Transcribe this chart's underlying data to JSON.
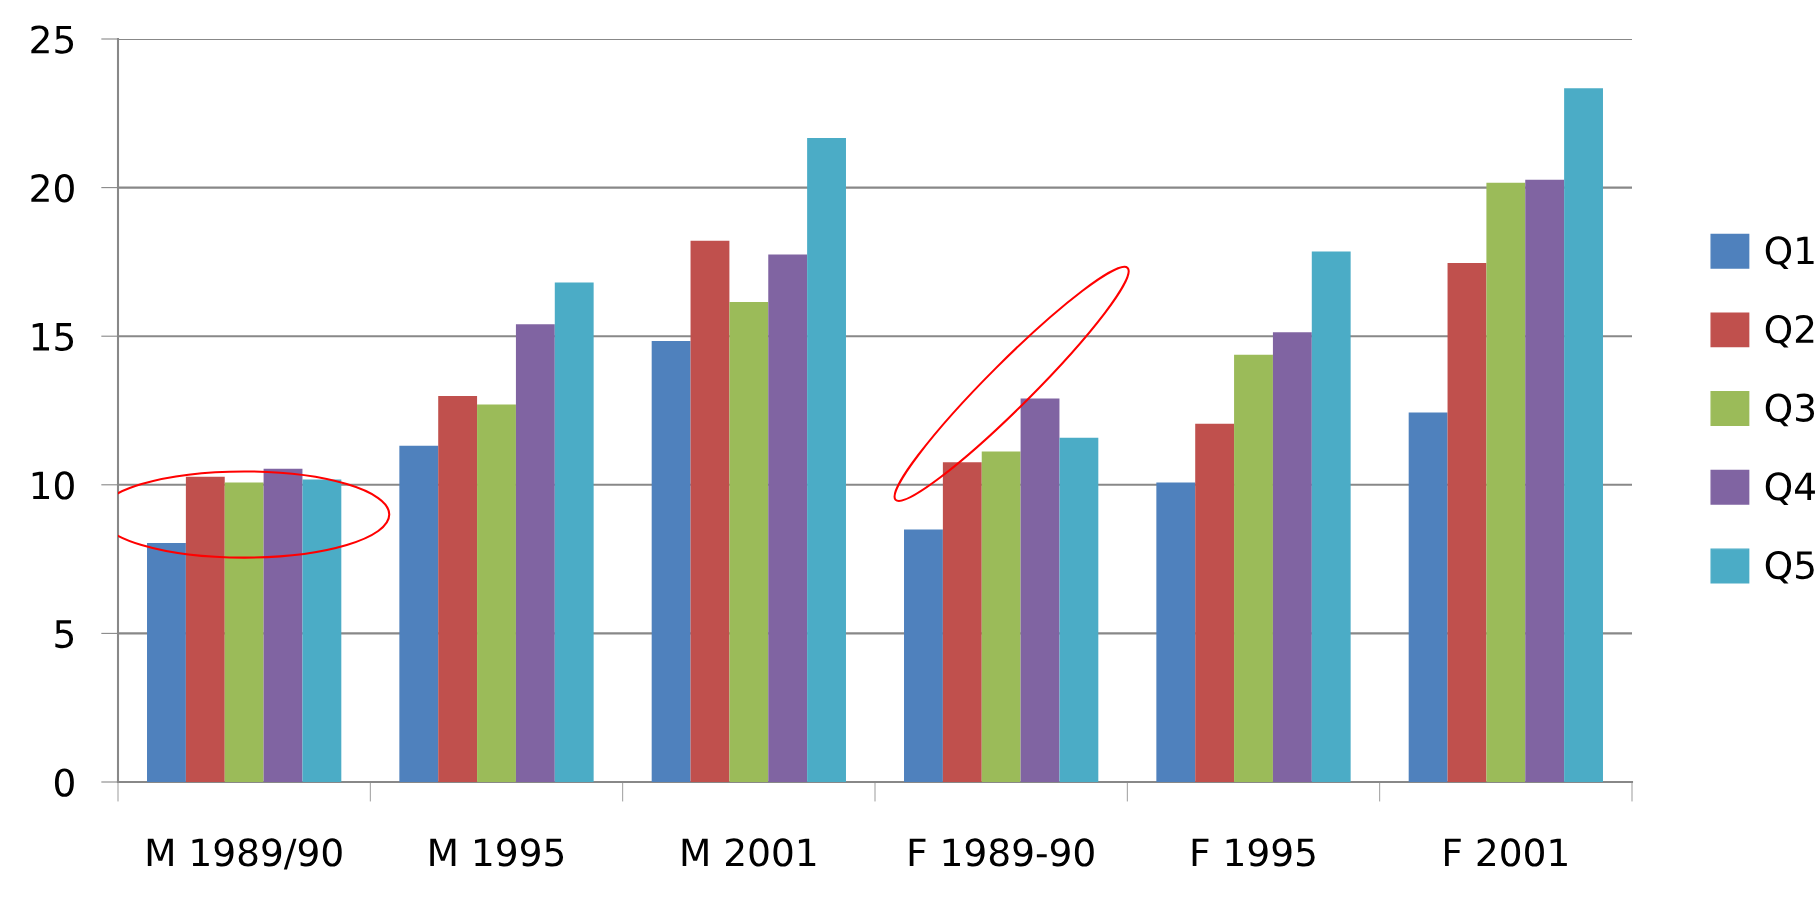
{
  "chart_data": {
    "type": "bar",
    "categories": [
      "M 1989/90",
      "M 1995",
      "M 2001",
      "F 1989-90",
      "F 1995",
      "F 2001"
    ],
    "series": [
      {
        "name": "Q1",
        "color": "#4f81bd",
        "values": [
          8.04,
          11.31,
          14.84,
          8.5,
          10.08,
          12.43
        ]
      },
      {
        "name": "Q2",
        "color": "#c0504d",
        "values": [
          10.27,
          12.99,
          18.21,
          10.76,
          12.05,
          17.46
        ]
      },
      {
        "name": "Q3",
        "color": "#9bbb59",
        "values": [
          10.08,
          12.7,
          16.15,
          11.12,
          14.38,
          20.16
        ]
      },
      {
        "name": "Q4",
        "color": "#8064a2",
        "values": [
          10.54,
          15.4,
          17.75,
          12.9,
          15.13,
          20.26
        ]
      },
      {
        "name": "Q5",
        "color": "#4bacc6",
        "values": [
          10.18,
          16.81,
          21.67,
          11.58,
          17.85,
          23.34
        ]
      }
    ],
    "ylim": [
      0,
      25
    ],
    "yticks": [
      0,
      5,
      10,
      15,
      20,
      25
    ],
    "grid": "y",
    "legend": "right"
  }
}
